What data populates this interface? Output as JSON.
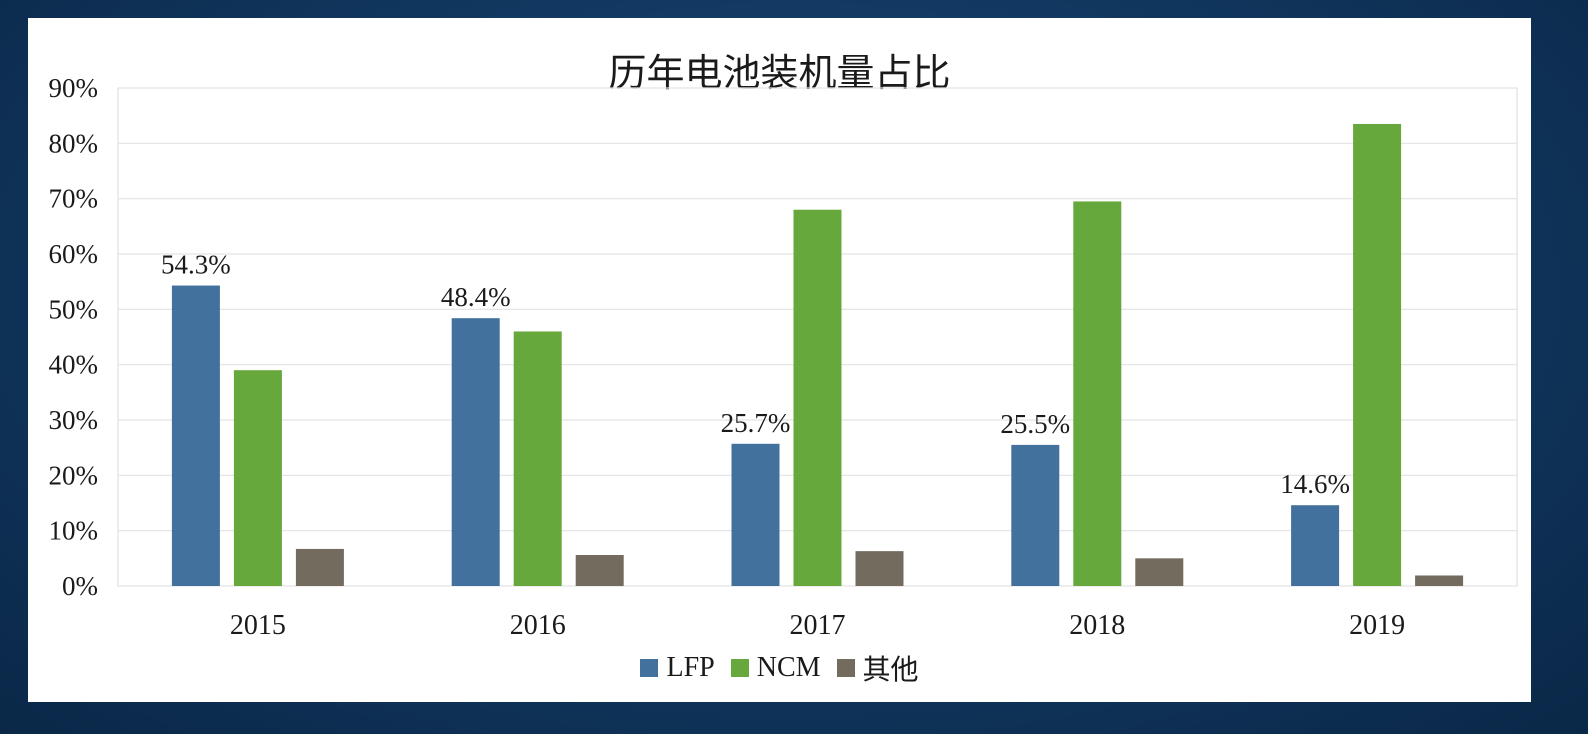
{
  "chart_data": {
    "type": "bar",
    "title": "历年电池装机量占比",
    "categories": [
      "2015",
      "2016",
      "2017",
      "2018",
      "2019"
    ],
    "series": [
      {
        "name": "LFP",
        "color": "#41719c",
        "values": [
          54.3,
          48.4,
          25.7,
          25.5,
          14.6
        ],
        "labels": [
          "54.3%",
          "48.4%",
          "25.7%",
          "25.5%",
          "14.6%"
        ]
      },
      {
        "name": "NCM",
        "color": "#66a83c",
        "values": [
          39.0,
          46.0,
          68.0,
          69.5,
          83.5
        ]
      },
      {
        "name": "其他",
        "color": "#736b5e",
        "values": [
          6.7,
          5.6,
          6.3,
          5.0,
          1.9
        ]
      }
    ],
    "ylim": [
      0,
      90
    ],
    "yticks": [
      "0%",
      "10%",
      "20%",
      "30%",
      "40%",
      "50%",
      "60%",
      "70%",
      "80%",
      "90%"
    ],
    "xlabel": "",
    "ylabel": "",
    "grid": true,
    "legend": "bottom"
  }
}
